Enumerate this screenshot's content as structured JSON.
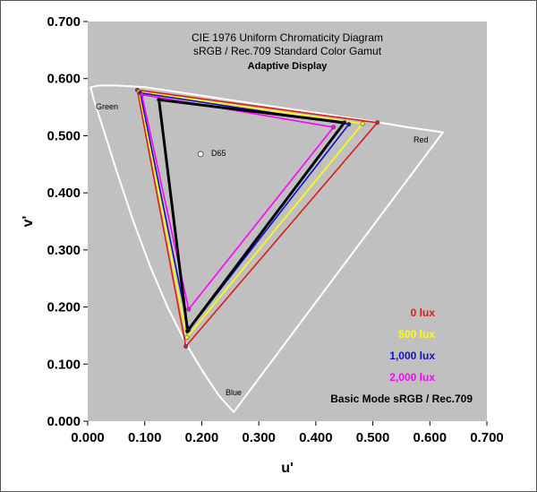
{
  "chart_data": {
    "type": "scatter",
    "title": "CIE 1976 Uniform Chromaticity Diagram",
    "subtitle": "sRGB / Rec.709 Standard Color Gamut",
    "subtitle2": "Adaptive Display",
    "xlabel": "u'",
    "ylabel": "v'",
    "xlim": [
      0,
      0.7
    ],
    "ylim": [
      0,
      0.7
    ],
    "xticks": [
      "0.000",
      "0.100",
      "0.200",
      "0.300",
      "0.400",
      "0.500",
      "0.600",
      "0.700"
    ],
    "yticks": [
      "0.000",
      "0.100",
      "0.200",
      "0.300",
      "0.400",
      "0.500",
      "0.600",
      "0.700"
    ],
    "plot_background": "#c0c0c0",
    "locus_labels": {
      "green": "Green",
      "red": "Red",
      "blue": "Blue"
    },
    "white_point": {
      "label": "D65",
      "u": 0.198,
      "v": 0.468
    },
    "spectral_locus": [
      [
        0.256,
        0.016
      ],
      [
        0.23,
        0.045
      ],
      [
        0.2,
        0.09
      ],
      [
        0.17,
        0.14
      ],
      [
        0.14,
        0.2
      ],
      [
        0.11,
        0.27
      ],
      [
        0.08,
        0.35
      ],
      [
        0.05,
        0.44
      ],
      [
        0.028,
        0.51
      ],
      [
        0.01,
        0.565
      ],
      [
        0.005,
        0.585
      ],
      [
        0.02,
        0.588
      ],
      [
        0.05,
        0.588
      ],
      [
        0.1,
        0.585
      ],
      [
        0.2,
        0.57
      ],
      [
        0.3,
        0.555
      ],
      [
        0.4,
        0.54
      ],
      [
        0.5,
        0.525
      ],
      [
        0.56,
        0.515
      ],
      [
        0.623,
        0.506
      ]
    ],
    "series": [
      {
        "name": "0 lux",
        "color": "#dd1c1c",
        "width": 1.6,
        "points": [
          [
            0.508,
            0.523
          ],
          [
            0.087,
            0.58
          ],
          [
            0.172,
            0.131
          ]
        ]
      },
      {
        "name": "500 lux",
        "color": "#ffff00",
        "width": 1.6,
        "points": [
          [
            0.482,
            0.521
          ],
          [
            0.09,
            0.577
          ],
          [
            0.174,
            0.147
          ]
        ]
      },
      {
        "name": "1,000 lux",
        "color": "#1010cc",
        "width": 1.6,
        "points": [
          [
            0.458,
            0.52
          ],
          [
            0.092,
            0.575
          ],
          [
            0.177,
            0.16
          ]
        ]
      },
      {
        "name": "2,000 lux",
        "color": "#ff00ff",
        "width": 1.6,
        "points": [
          [
            0.431,
            0.515
          ],
          [
            0.095,
            0.572
          ],
          [
            0.177,
            0.196
          ]
        ]
      },
      {
        "name": "Basic Mode  sRGB / Rec.709",
        "color": "#000000",
        "width": 3,
        "points": [
          [
            0.45,
            0.523
          ],
          [
            0.125,
            0.563
          ],
          [
            0.175,
            0.158
          ]
        ]
      }
    ],
    "legend_entries": [
      {
        "label": "0 lux",
        "color": "#dd1c1c"
      },
      {
        "label": "500 lux",
        "color": "#ffff00"
      },
      {
        "label": "1,000 lux",
        "color": "#1010cc"
      },
      {
        "label": "2,000 lux",
        "color": "#ff00ff"
      },
      {
        "label": "Basic Mode  sRGB / Rec.709",
        "color": "#000000"
      }
    ],
    "legend_position": "bottom-right"
  }
}
